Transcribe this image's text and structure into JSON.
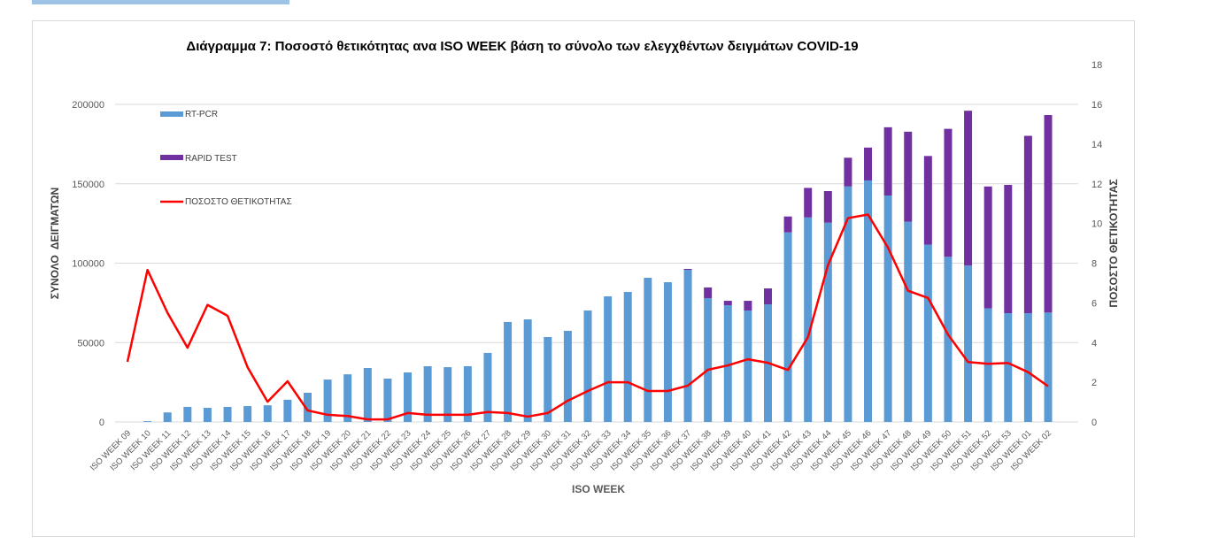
{
  "chart_data": {
    "type": "bar",
    "stacked": true,
    "title": "Διάγραμμα 7: Ποσοστό θετικότητας ανα ISO WEEK  βάση το σύνολο των ελεγχθέντων δειγμάτων COVID-19",
    "xlabel": "ISO WEEK",
    "ylabel": "ΣΥΝΟΛΟ  ΔΕΙΓΜΑΤΩΝ",
    "y2label": "ΠΟΣΟΣΤΟ ΘΕΤΙΚΟΤΗΤΑΣ",
    "ylim": [
      0,
      200000
    ],
    "yticks": [
      "0",
      "50000",
      "100000",
      "150000",
      "200000"
    ],
    "y2lim": [
      0,
      18
    ],
    "y2ticks": [
      "0",
      "2",
      "4",
      "6",
      "8",
      "10",
      "12",
      "14",
      "16",
      "18"
    ],
    "grid": true,
    "legend_position": "top-left",
    "categories": [
      "ISO WEEK 09",
      "ISO WEEK 10",
      "ISO WEEK 11",
      "ISO WEEK 12",
      "ISO WEEK 13",
      "ISO WEEK 14",
      "ISO WEEK 15",
      "ISO WEEK 16",
      "ISO WEEK 17",
      "ISO WEEK 18",
      "ISO WEEK 19",
      "ISO WEEK 20",
      "ISO WEEK 21",
      "ISO WEEK 22",
      "ISO WEEK 23",
      "ISO WEEK 24",
      "ISO WEEK 25",
      "ISO WEEK 26",
      "ISO WEEK 27",
      "ISO WEEK 28",
      "ISO WEEK 29",
      "ISO WEEK 30",
      "ISO WEEK 31",
      "ISO WEEK 32",
      "ISO WEEK 33",
      "ISO WEEK 34",
      "ISO WEEK 35",
      "ISO WEEK 36",
      "ISO WEEK 37",
      "ISO WEEK 38",
      "ISO WEEK 39",
      "ISO WEEK 40",
      "ISO WEEK 41",
      "ISO WEEK 42",
      "ISO WEEK 43",
      "ISO WEEK 44",
      "ISO WEEK 45",
      "ISO WEEK 46",
      "ISO WEEK 47",
      "ISO WEEK 48",
      "ISO WEEK 49",
      "ISO WEEK 50",
      "ISO WEEK 51",
      "ISO WEEK 52",
      "ISO WEEK 53",
      "ISO WEEK 01",
      "ISO WEEK 02"
    ],
    "series": [
      {
        "name": "RT-PCR",
        "type": "bar",
        "axis": "left",
        "color": "#5b9bd5",
        "values": [
          0,
          500,
          6000,
          9500,
          8900,
          9500,
          10000,
          10500,
          14000,
          18400,
          26700,
          30000,
          34000,
          27300,
          31200,
          35100,
          34500,
          35100,
          43500,
          63000,
          64600,
          53500,
          57400,
          70200,
          79100,
          81900,
          90800,
          88000,
          95800,
          78000,
          73500,
          70200,
          74100,
          119400,
          128800,
          125500,
          148300,
          152100,
          142600,
          126100,
          111700,
          104000,
          98500,
          71500,
          68500,
          68500,
          68900
        ]
      },
      {
        "name": "RAPID TEST",
        "type": "bar",
        "axis": "left",
        "color": "#7030a0",
        "values": [
          0,
          0,
          0,
          0,
          0,
          0,
          0,
          0,
          0,
          0,
          0,
          0,
          0,
          0,
          0,
          0,
          0,
          0,
          0,
          0,
          0,
          0,
          0,
          0,
          0,
          0,
          0,
          0,
          600,
          6700,
          2800,
          6100,
          10000,
          10000,
          18600,
          19900,
          18100,
          20700,
          43000,
          56700,
          55800,
          80600,
          97500,
          76800,
          80800,
          111700,
          124400
        ]
      },
      {
        "name": "ΠΟΣΟΣΤΟ ΘΕΤΙΚΟΤΗΤΑΣ",
        "type": "line",
        "axis": "right",
        "color": "#ff0000",
        "values": [
          3.03,
          7.66,
          5.5,
          3.74,
          5.9,
          5.35,
          2.76,
          1.02,
          2.05,
          0.58,
          0.36,
          0.3,
          0.13,
          0.13,
          0.45,
          0.36,
          0.36,
          0.36,
          0.5,
          0.45,
          0.27,
          0.45,
          1.07,
          1.56,
          2.0,
          2.0,
          1.56,
          1.56,
          1.83,
          2.63,
          2.85,
          3.16,
          2.98,
          2.62,
          4.27,
          7.9,
          10.27,
          10.45,
          8.78,
          6.61,
          6.25,
          4.4,
          3.02,
          2.93,
          2.97,
          2.51,
          1.8
        ]
      }
    ]
  }
}
